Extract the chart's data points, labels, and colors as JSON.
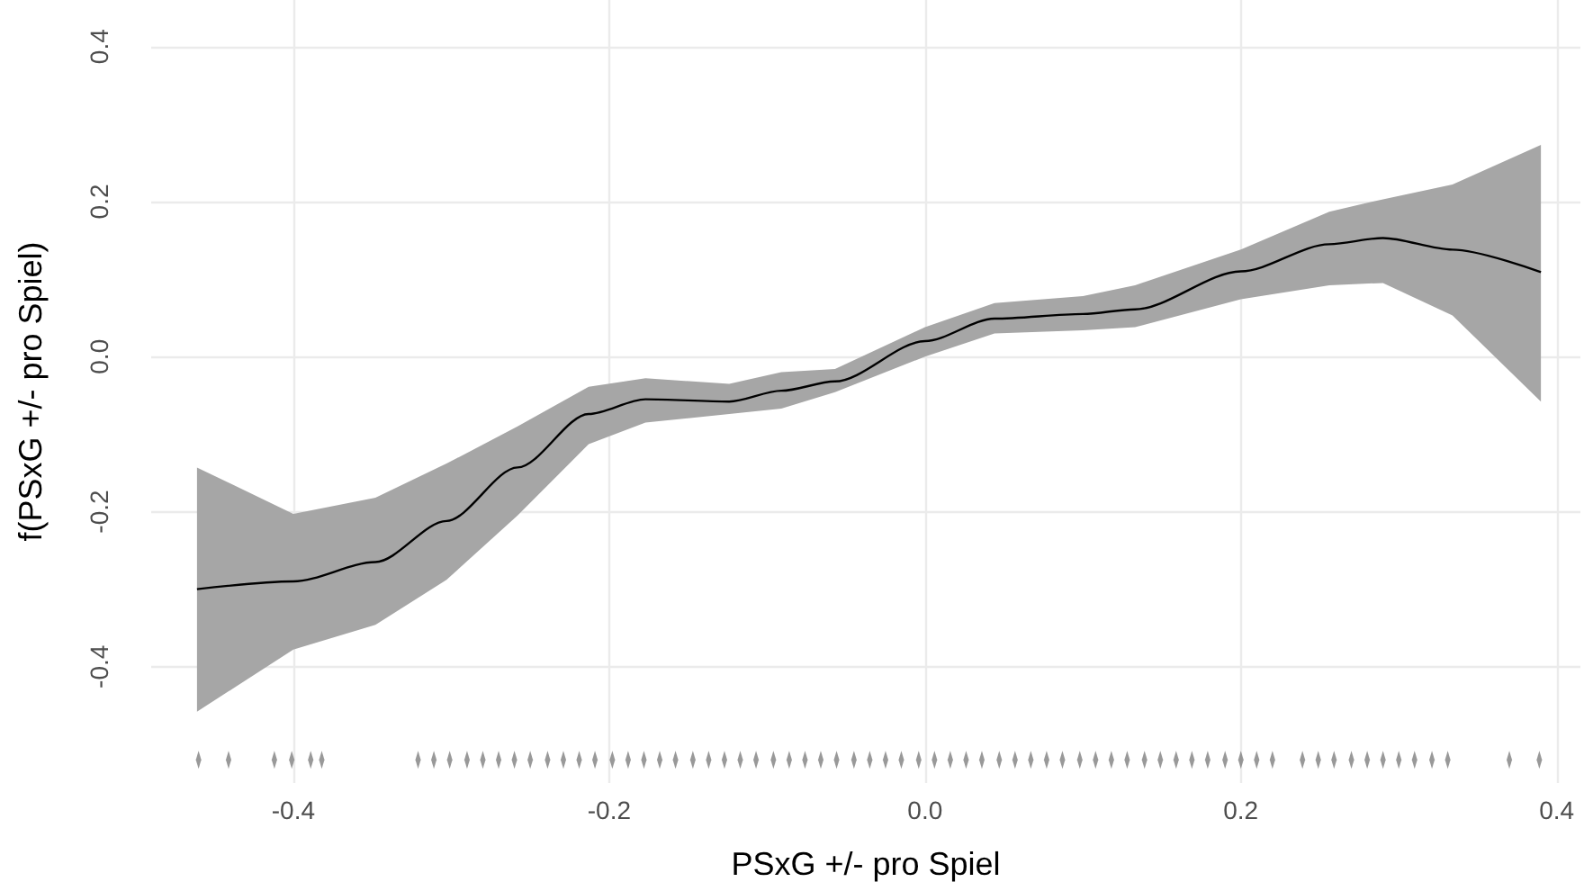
{
  "chart_data": {
    "type": "line",
    "xlabel": "PSxG +/- pro Spiel",
    "ylabel": "f(PSxG +/- pro Spiel)",
    "xlim": [
      -0.49,
      0.415
    ],
    "ylim": [
      -0.55,
      0.46
    ],
    "xticks": [
      -0.4,
      -0.2,
      {
        "value": 0,
        "label": "0.0"
      },
      0.2,
      0.4
    ],
    "yticks": [
      -0.4,
      -0.2,
      {
        "value": 0,
        "label": "0.0"
      },
      0.2,
      0.4
    ],
    "grid": true,
    "series": [
      {
        "type": "line",
        "color": "#000000",
        "x": [
          -0.461,
          -0.4,
          -0.348,
          -0.303,
          -0.258,
          -0.213,
          -0.177,
          -0.124,
          -0.091,
          -0.057,
          0.0,
          0.044,
          0.1,
          0.133,
          0.2,
          0.256,
          0.29,
          0.334,
          0.39
        ],
        "values": [
          -0.3,
          -0.29,
          -0.265,
          -0.212,
          -0.143,
          -0.074,
          -0.055,
          -0.058,
          -0.044,
          -0.032,
          0.02,
          0.049,
          0.055,
          0.061,
          0.11,
          0.145,
          0.153,
          0.138,
          0.109
        ],
        "lower": [
          -0.458,
          -0.378,
          -0.346,
          -0.288,
          -0.205,
          -0.113,
          -0.085,
          -0.074,
          -0.067,
          -0.046,
          0.0,
          0.03,
          0.034,
          0.038,
          0.074,
          0.092,
          0.095,
          0.053,
          -0.058
        ],
        "upper": [
          -0.143,
          -0.203,
          -0.182,
          -0.138,
          -0.09,
          -0.039,
          -0.028,
          -0.035,
          -0.02,
          -0.016,
          0.038,
          0.069,
          0.078,
          0.092,
          0.138,
          0.187,
          0.203,
          0.222,
          0.273
        ]
      },
      {
        "type": "scatter",
        "color": "#7f7f7f",
        "marker": "diamond",
        "x": [
          -0.46,
          -0.441,
          -0.412,
          -0.401,
          -0.389,
          -0.382,
          -0.321,
          -0.311,
          -0.301,
          -0.29,
          -0.28,
          -0.27,
          -0.26,
          -0.25,
          -0.239,
          -0.229,
          -0.219,
          -0.209,
          -0.198,
          -0.188,
          -0.178,
          -0.168,
          -0.158,
          -0.147,
          -0.137,
          -0.127,
          -0.117,
          -0.107,
          -0.096,
          -0.086,
          -0.076,
          -0.066,
          -0.056,
          -0.045,
          -0.035,
          -0.025,
          -0.015,
          -0.004,
          0.006,
          0.016,
          0.026,
          0.036,
          0.047,
          0.057,
          0.067,
          0.077,
          0.087,
          0.098,
          0.108,
          0.118,
          0.128,
          0.139,
          0.149,
          0.159,
          0.169,
          0.179,
          0.19,
          0.2,
          0.21,
          0.22,
          0.239,
          0.249,
          0.259,
          0.27,
          0.28,
          0.29,
          0.3,
          0.31,
          0.321,
          0.331,
          0.37,
          0.389
        ],
        "values": [
          -0.52,
          -0.52,
          -0.52,
          -0.52,
          -0.52,
          -0.52,
          -0.52,
          -0.52,
          -0.52,
          -0.52,
          -0.52,
          -0.52,
          -0.52,
          -0.52,
          -0.52,
          -0.52,
          -0.52,
          -0.52,
          -0.52,
          -0.52,
          -0.52,
          -0.52,
          -0.52,
          -0.52,
          -0.52,
          -0.52,
          -0.52,
          -0.52,
          -0.52,
          -0.52,
          -0.52,
          -0.52,
          -0.52,
          -0.52,
          -0.52,
          -0.52,
          -0.52,
          -0.52,
          -0.52,
          -0.52,
          -0.52,
          -0.52,
          -0.52,
          -0.52,
          -0.52,
          -0.52,
          -0.52,
          -0.52,
          -0.52,
          -0.52,
          -0.52,
          -0.52,
          -0.52,
          -0.52,
          -0.52,
          -0.52,
          -0.52,
          -0.52,
          -0.52,
          -0.52,
          -0.52,
          -0.52,
          -0.52,
          -0.52,
          -0.52,
          -0.52,
          -0.52,
          -0.52,
          -0.52,
          -0.52,
          -0.52,
          -0.52
        ]
      }
    ]
  }
}
